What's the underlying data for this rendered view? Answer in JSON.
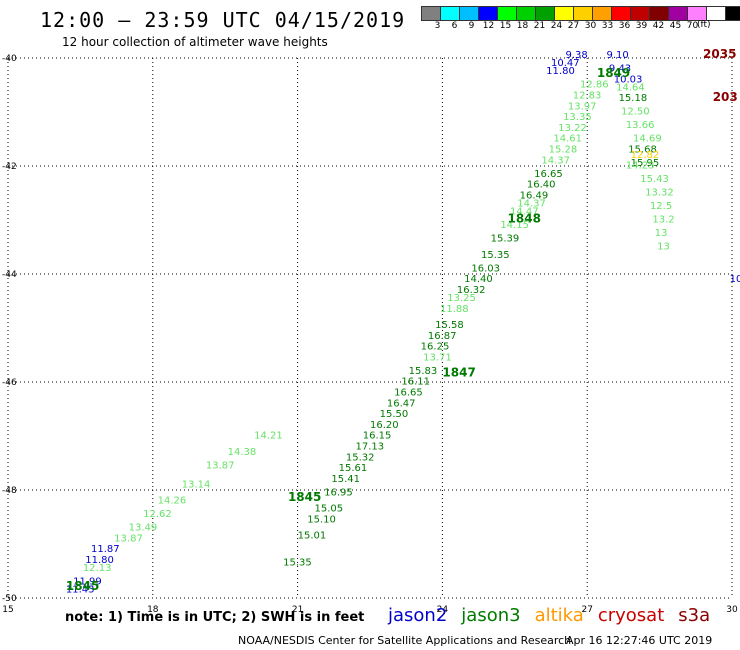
{
  "title": "12:00 – 23:59 UTC 04/15/2019",
  "subtitle": "12 hour collection of altimeter wave heights",
  "color_scale": {
    "colors": [
      "#808080",
      "#00ffff",
      "#00bfff",
      "#0000ff",
      "#00ff00",
      "#00d000",
      "#00a000",
      "#ffff00",
      "#ffd000",
      "#ffa000",
      "#ff0000",
      "#c00000",
      "#800000",
      "#a000a0",
      "#ff80ff",
      "#ffffff",
      "#000000"
    ],
    "labels": [
      "3",
      "6",
      "9",
      "12",
      "15",
      "18",
      "21",
      "24",
      "27",
      "30",
      "33",
      "36",
      "39",
      "42",
      "45",
      "70"
    ],
    "unit": "(ft)"
  },
  "note": "note:  1) Time is in UTC;  2) SWH is in feet",
  "legend": [
    {
      "name": "jason2",
      "color": "#0000cc"
    },
    {
      "name": "jason3",
      "color": "#007a00"
    },
    {
      "name": "altika",
      "color": "#ff9900"
    },
    {
      "name": "cryosat",
      "color": "#cc0000"
    },
    {
      "name": "s3a",
      "color": "#880000"
    }
  ],
  "credit": "NOAA/NESDIS Center for Satellite Applications and Research",
  "timestamp": "Apr 16 12:27:46 UTC 2019",
  "chart_data": {
    "type": "scatter",
    "xlim": [
      15,
      30
    ],
    "ylim": [
      -50,
      -40
    ],
    "x_ticks": [
      "15",
      "18",
      "21",
      "24",
      "27",
      "30"
    ],
    "y_ticks": [
      "-40",
      "-42",
      "-44",
      "-46",
      "-48",
      "-50"
    ],
    "grid": true,
    "series": [
      {
        "name": "jason2",
        "color": "#0000cc",
        "points": [
          {
            "x": 16.2,
            "y": -49.9,
            "v": "11.43"
          },
          {
            "x": 16.35,
            "y": -49.75,
            "v": "11.99"
          },
          {
            "x": 16.6,
            "y": -49.35,
            "v": "11.80"
          },
          {
            "x": 16.72,
            "y": -49.15,
            "v": "11.87"
          },
          {
            "x": 26.15,
            "y": -40.3,
            "v": "11.80"
          },
          {
            "x": 26.25,
            "y": -40.15,
            "v": "10.47"
          },
          {
            "x": 26.55,
            "y": -40.0,
            "v": "9.38"
          },
          {
            "x": 27.4,
            "y": -40.0,
            "v": "9.10"
          },
          {
            "x": 27.45,
            "y": -40.25,
            "v": "9.43"
          },
          {
            "x": 27.55,
            "y": -40.45,
            "v": "10.03"
          },
          {
            "x": 29.95,
            "y": -44.15,
            "v": "10"
          }
        ]
      },
      {
        "name": "jason3",
        "color": "#007a00",
        "points": [
          {
            "x": 20.7,
            "y": -49.4,
            "v": "15.35"
          },
          {
            "x": 21.0,
            "y": -48.9,
            "v": "15.01"
          },
          {
            "x": 21.2,
            "y": -48.6,
            "v": "15.10"
          },
          {
            "x": 21.35,
            "y": -48.4,
            "v": "15.05"
          },
          {
            "x": 21.55,
            "y": -48.1,
            "v": "16.95"
          },
          {
            "x": 21.7,
            "y": -47.85,
            "v": "15.41"
          },
          {
            "x": 21.85,
            "y": -47.65,
            "v": "15.61"
          },
          {
            "x": 22.0,
            "y": -47.45,
            "v": "15.32"
          },
          {
            "x": 22.2,
            "y": -47.25,
            "v": "17.13"
          },
          {
            "x": 22.35,
            "y": -47.05,
            "v": "16.15"
          },
          {
            "x": 22.5,
            "y": -46.85,
            "v": "16.20"
          },
          {
            "x": 22.7,
            "y": -46.65,
            "v": "15.50"
          },
          {
            "x": 22.85,
            "y": -46.45,
            "v": "16.47"
          },
          {
            "x": 23.0,
            "y": -46.25,
            "v": "16.65"
          },
          {
            "x": 23.15,
            "y": -46.05,
            "v": "16.11"
          },
          {
            "x": 23.3,
            "y": -45.85,
            "v": "15.83"
          },
          {
            "x": 23.55,
            "y": -45.4,
            "v": "16.25"
          },
          {
            "x": 23.7,
            "y": -45.2,
            "v": "16.87"
          },
          {
            "x": 23.85,
            "y": -45.0,
            "v": "15.58"
          },
          {
            "x": 24.3,
            "y": -44.35,
            "v": "16.32"
          },
          {
            "x": 24.45,
            "y": -44.15,
            "v": "14.40"
          },
          {
            "x": 24.6,
            "y": -43.95,
            "v": "16.03"
          },
          {
            "x": 24.8,
            "y": -43.7,
            "v": "15.35"
          },
          {
            "x": 25.0,
            "y": -43.4,
            "v": "15.39"
          },
          {
            "x": 25.6,
            "y": -42.6,
            "v": "16.49"
          },
          {
            "x": 25.75,
            "y": -42.4,
            "v": "16.40"
          },
          {
            "x": 25.9,
            "y": -42.2,
            "v": "16.65"
          },
          {
            "x": 27.85,
            "y": -41.75,
            "v": "15.68"
          },
          {
            "x": 27.9,
            "y": -42.0,
            "v": "15.95"
          },
          {
            "x": 27.65,
            "y": -40.8,
            "v": "15.18"
          }
        ]
      },
      {
        "name": "jason3-light",
        "color": "#66e266",
        "points": [
          {
            "x": 16.55,
            "y": -49.5,
            "v": "12.13"
          },
          {
            "x": 17.2,
            "y": -48.95,
            "v": "13.87"
          },
          {
            "x": 17.5,
            "y": -48.75,
            "v": "13.49"
          },
          {
            "x": 17.8,
            "y": -48.5,
            "v": "12.62"
          },
          {
            "x": 18.1,
            "y": -48.25,
            "v": "14.26"
          },
          {
            "x": 18.6,
            "y": -47.95,
            "v": "13.14"
          },
          {
            "x": 19.1,
            "y": -47.6,
            "v": "13.87"
          },
          {
            "x": 19.55,
            "y": -47.35,
            "v": "14.38"
          },
          {
            "x": 20.1,
            "y": -47.05,
            "v": "14.21"
          },
          {
            "x": 23.6,
            "y": -45.6,
            "v": "13.71"
          },
          {
            "x": 23.95,
            "y": -44.7,
            "v": "11.88"
          },
          {
            "x": 24.1,
            "y": -44.5,
            "v": "13.25"
          },
          {
            "x": 25.2,
            "y": -43.15,
            "v": "14.15"
          },
          {
            "x": 25.4,
            "y": -42.9,
            "v": "14.47"
          },
          {
            "x": 25.55,
            "y": -42.75,
            "v": "14.37"
          },
          {
            "x": 26.05,
            "y": -41.95,
            "v": "14.37"
          },
          {
            "x": 26.2,
            "y": -41.75,
            "v": "15.28"
          },
          {
            "x": 26.3,
            "y": -41.55,
            "v": "14.61"
          },
          {
            "x": 26.4,
            "y": -41.35,
            "v": "13.22"
          },
          {
            "x": 26.5,
            "y": -41.15,
            "v": "13.35"
          },
          {
            "x": 26.6,
            "y": -40.95,
            "v": "13.97"
          },
          {
            "x": 26.7,
            "y": -40.75,
            "v": "12.83"
          },
          {
            "x": 26.85,
            "y": -40.55,
            "v": "12.86"
          },
          {
            "x": 27.6,
            "y": -40.6,
            "v": "14.64"
          },
          {
            "x": 27.7,
            "y": -41.05,
            "v": "12.50"
          },
          {
            "x": 27.8,
            "y": -41.3,
            "v": "13.66"
          },
          {
            "x": 27.95,
            "y": -41.55,
            "v": "14.69"
          },
          {
            "x": 27.8,
            "y": -42.05,
            "v": "14.23"
          },
          {
            "x": 28.1,
            "y": -42.3,
            "v": "15.43"
          },
          {
            "x": 28.2,
            "y": -42.55,
            "v": "13.32"
          },
          {
            "x": 28.3,
            "y": -42.8,
            "v": "12.5"
          },
          {
            "x": 28.35,
            "y": -43.05,
            "v": "13.2"
          },
          {
            "x": 28.4,
            "y": -43.3,
            "v": "13"
          },
          {
            "x": 28.45,
            "y": -43.55,
            "v": "13"
          }
        ]
      },
      {
        "name": "altika",
        "color": "#ffcc00",
        "points": [
          {
            "x": 27.9,
            "y": -41.85,
            "v": "12.82"
          }
        ]
      }
    ],
    "pass_labels": [
      {
        "x": 16.2,
        "y": -49.85,
        "text": "1845",
        "color": "#007a00"
      },
      {
        "x": 20.8,
        "y": -48.2,
        "text": "1845",
        "color": "#007a00"
      },
      {
        "x": 24.0,
        "y": -45.9,
        "text": "1847",
        "color": "#007a00"
      },
      {
        "x": 25.35,
        "y": -43.05,
        "text": "1848",
        "color": "#007a00"
      },
      {
        "x": 27.2,
        "y": -40.35,
        "text": "1849",
        "color": "#007a00"
      },
      {
        "x": 29.4,
        "y": -40.0,
        "text": "2035",
        "color": "#880000"
      },
      {
        "x": 29.6,
        "y": -40.8,
        "text": "203",
        "color": "#880000"
      }
    ]
  }
}
